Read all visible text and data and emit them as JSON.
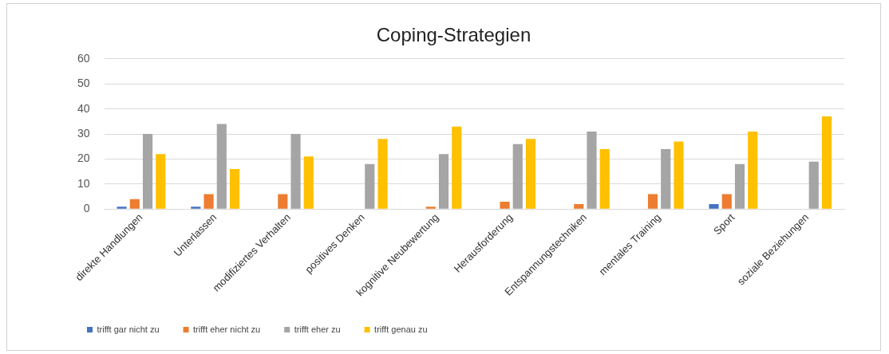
{
  "chart_data": {
    "type": "bar",
    "title": "Coping-Strategien",
    "categories": [
      "direkte Handlungen",
      "Unterlassen",
      "modifiziertes Verhalten",
      "positives Denken",
      "kognitive Neubewertung",
      "Herausforderung",
      "Entspannungstechniken",
      "mentales Training",
      "Sport",
      "soziale Beziehungen"
    ],
    "series": [
      {
        "name": "trifft gar nicht zu",
        "color": "#4472c4",
        "values": [
          1,
          1,
          null,
          null,
          null,
          null,
          null,
          null,
          2,
          null
        ]
      },
      {
        "name": "trifft eher nicht zu",
        "color": "#ed7d31",
        "values": [
          4,
          6,
          6,
          null,
          1,
          3,
          2,
          6,
          6,
          null
        ]
      },
      {
        "name": "trifft eher zu",
        "color": "#a5a5a5",
        "values": [
          30,
          34,
          30,
          18,
          22,
          26,
          31,
          24,
          18,
          19
        ]
      },
      {
        "name": "trifft genau zu",
        "color": "#ffc000",
        "values": [
          22,
          16,
          21,
          28,
          33,
          28,
          24,
          27,
          31,
          37
        ]
      }
    ],
    "ylim": [
      0,
      60
    ],
    "yticks": [
      0,
      10,
      20,
      30,
      40,
      50,
      60
    ],
    "grid": "y",
    "legend": "bottom left"
  }
}
